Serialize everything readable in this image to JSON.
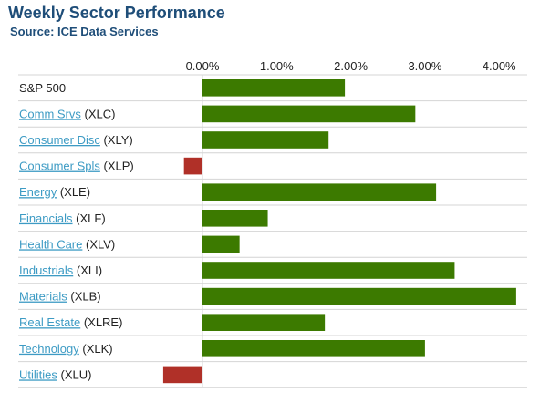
{
  "header": {
    "title": "Weekly Sector Performance",
    "subtitle": "Source: ICE Data Services"
  },
  "colors": {
    "positive": "#3c7a00",
    "negative": "#b03028",
    "link": "#3d9bc4",
    "grid": "#d4d4d4",
    "title": "#1f4e79"
  },
  "chart_data": {
    "type": "bar",
    "orientation": "horizontal",
    "title": "Weekly Sector Performance",
    "subtitle": "Source: ICE Data Services",
    "xlim": [
      0,
      4.25
    ],
    "x_ticks": [
      "0.00%",
      "1.00%",
      "2.00%",
      "3.00%",
      "4.00%"
    ],
    "x_tick_values": [
      0,
      1,
      2,
      3,
      4
    ],
    "grid": true,
    "categories": [
      {
        "name": "S&P 500",
        "ticker": "",
        "link": false,
        "value": 1.92
      },
      {
        "name": "Comm Srvs",
        "ticker": "(XLC)",
        "link": true,
        "value": 2.87
      },
      {
        "name": "Consumer Disc",
        "ticker": "(XLY)",
        "link": true,
        "value": 1.7
      },
      {
        "name": "Consumer Spls",
        "ticker": "(XLP)",
        "link": true,
        "value": -0.25
      },
      {
        "name": "Energy",
        "ticker": "(XLE)",
        "link": true,
        "value": 3.15
      },
      {
        "name": "Financials",
        "ticker": "(XLF)",
        "link": true,
        "value": 0.88
      },
      {
        "name": "Health Care",
        "ticker": "(XLV)",
        "link": true,
        "value": 0.5
      },
      {
        "name": "Industrials",
        "ticker": "(XLI)",
        "link": true,
        "value": 3.4
      },
      {
        "name": "Materials",
        "ticker": "(XLB)",
        "link": true,
        "value": 4.23
      },
      {
        "name": "Real Estate",
        "ticker": "(XLRE)",
        "link": true,
        "value": 1.65
      },
      {
        "name": "Technology",
        "ticker": "(XLK)",
        "link": true,
        "value": 3.0
      },
      {
        "name": "Utilities",
        "ticker": "(XLU)",
        "link": true,
        "value": -0.53
      }
    ]
  }
}
